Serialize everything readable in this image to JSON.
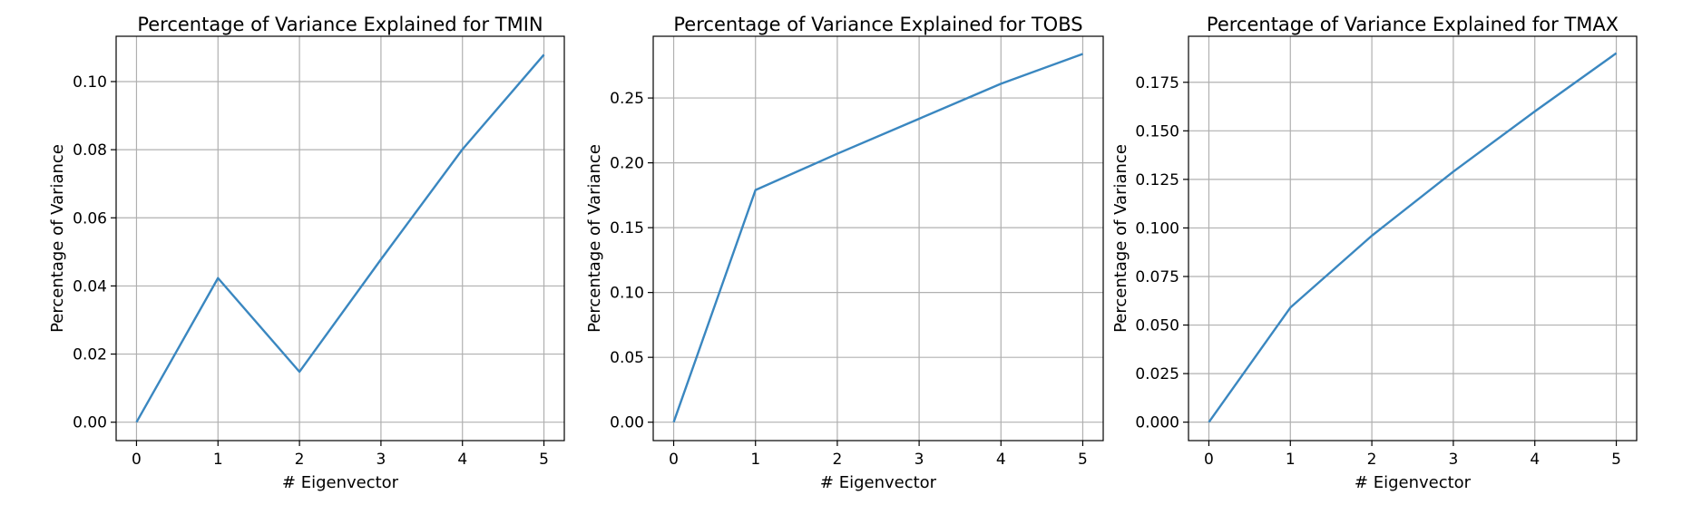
{
  "chart_data": [
    {
      "type": "line",
      "title": "Percentage of Variance Explained for TMIN",
      "xlabel": "# Eigenvector",
      "ylabel": "Percentage of Variance",
      "x": [
        0,
        1,
        2,
        3,
        4,
        5
      ],
      "xticks": [
        "0",
        "1",
        "2",
        "3",
        "4",
        "5"
      ],
      "yticks": [
        "0.00",
        "0.02",
        "0.04",
        "0.06",
        "0.08",
        "0.10"
      ],
      "ytick_values": [
        0.0,
        0.02,
        0.04,
        0.06,
        0.08,
        0.1
      ],
      "xlim": [
        -0.25,
        5.25
      ],
      "ylim": [
        -0.0054,
        0.1133
      ],
      "grid": true,
      "series": [
        {
          "values": [
            0.0,
            0.0423,
            0.0148,
            0.0478,
            0.0801,
            0.1079
          ]
        }
      ]
    },
    {
      "type": "line",
      "title": "Percentage of Variance Explained for TOBS",
      "xlabel": "# Eigenvector",
      "ylabel": "Percentage of Variance",
      "x": [
        0,
        1,
        2,
        3,
        4,
        5
      ],
      "xticks": [
        "0",
        "1",
        "2",
        "3",
        "4",
        "5"
      ],
      "yticks": [
        "0.00",
        "0.05",
        "0.10",
        "0.15",
        "0.20",
        "0.25"
      ],
      "ytick_values": [
        0.0,
        0.05,
        0.1,
        0.15,
        0.2,
        0.25
      ],
      "xlim": [
        -0.25,
        5.25
      ],
      "ylim": [
        -0.0142,
        0.2976
      ],
      "grid": true,
      "series": [
        {
          "values": [
            0.0,
            0.179,
            0.207,
            0.234,
            0.261,
            0.284
          ]
        }
      ]
    },
    {
      "type": "line",
      "title": "Percentage of Variance Explained for TMAX",
      "xlabel": "# Eigenvector",
      "ylabel": "Percentage of Variance",
      "x": [
        0,
        1,
        2,
        3,
        4,
        5
      ],
      "xticks": [
        "0",
        "1",
        "2",
        "3",
        "4",
        "5"
      ],
      "yticks": [
        "0.000",
        "0.025",
        "0.050",
        "0.075",
        "0.100",
        "0.125",
        "0.150",
        "0.175"
      ],
      "ytick_values": [
        0.0,
        0.025,
        0.05,
        0.075,
        0.1,
        0.125,
        0.15,
        0.175
      ],
      "xlim": [
        -0.25,
        5.25
      ],
      "ylim": [
        -0.0095,
        0.1987
      ],
      "grid": true,
      "series": [
        {
          "values": [
            0.0,
            0.059,
            0.096,
            0.129,
            0.16,
            0.19
          ]
        }
      ]
    }
  ],
  "colors": {
    "line": "#3a87c0"
  }
}
